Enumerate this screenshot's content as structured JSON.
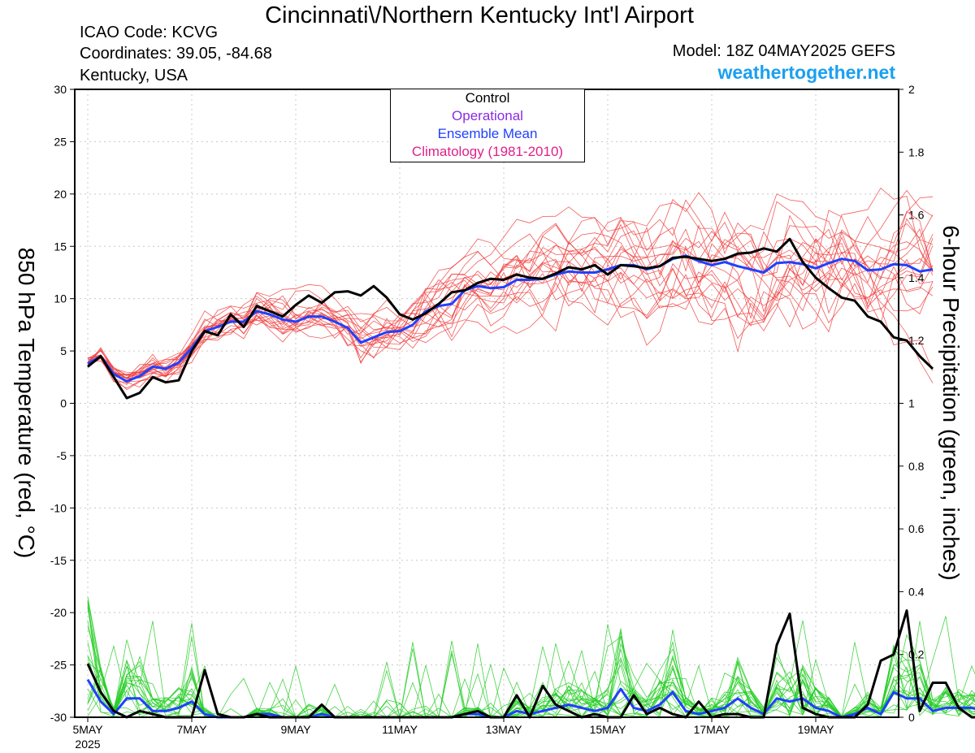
{
  "header": {
    "title": "Cincinnati\\/Northern Kentucky Int'l Airport",
    "icao": "ICAO Code: KCVG",
    "coords": "Coordinates: 39.05, -84.68",
    "region": "Kentucky, USA",
    "model": "Model: 18Z 04MAY2025 GEFS",
    "site": "weathertogether.net"
  },
  "chart_data": {
    "type": "line",
    "x_labels": [
      "5MAY",
      "7MAY",
      "9MAY",
      "11MAY",
      "13MAY",
      "15MAY",
      "17MAY",
      "19MAY"
    ],
    "x_year_label": "2025",
    "x_range_hours": [
      0,
      372
    ],
    "y_left": {
      "label": "850 hPa Temperature (red, °C)",
      "range": [
        -30,
        30
      ],
      "ticks": [
        30,
        25,
        20,
        15,
        10,
        5,
        0,
        -5,
        -10,
        -15,
        -20,
        -25,
        -30
      ]
    },
    "y_right": {
      "label": "6-hour Precipitation (green, inches)",
      "range": [
        0,
        2
      ],
      "ticks": [
        "2",
        "1.8",
        "1.6",
        "1.4",
        "1.2",
        "1",
        "0.8",
        "0.6",
        "0.4",
        "0.2",
        "0"
      ]
    },
    "legend": [
      {
        "name": "Control",
        "color": "#000000"
      },
      {
        "name": "Operational",
        "color": "#8a2be2"
      },
      {
        "name": "Ensemble Mean",
        "color": "#2040ff"
      },
      {
        "name": "Climatology (1981-2010)",
        "color": "#e0208a"
      }
    ],
    "colors": {
      "members_temp": "#f04040",
      "members_precip": "#22cc22",
      "control": "#000000",
      "mean": "#2040ff"
    },
    "control_temp": [
      3.5,
      4.5,
      2.5,
      0.5,
      1.0,
      2.5,
      2.0,
      2.2,
      5.0,
      6.9,
      6.5,
      8.5,
      7.3,
      9.3,
      8.8,
      8.3,
      9.4,
      10.3,
      9.6,
      10.6,
      10.7,
      10.3,
      11.2,
      10.1,
      8.5,
      8.0,
      8.6,
      9.5,
      10.6,
      10.8,
      11.5,
      11.9,
      11.8,
      12.3,
      12.0,
      11.9,
      12.4,
      13.0,
      12.8,
      13.2,
      12.3,
      13.2,
      13.1,
      12.9,
      13.1,
      13.9,
      14.0,
      13.8,
      13.6,
      13.8,
      14.3,
      14.4,
      14.8,
      14.5,
      15.7,
      13.5,
      12.0,
      11.0,
      10.1,
      9.8,
      8.3,
      7.8,
      6.3,
      6.0,
      4.5,
      3.3
    ],
    "mean_temp": [
      3.8,
      4.5,
      2.8,
      2.1,
      2.6,
      3.5,
      3.3,
      3.9,
      5.3,
      6.9,
      7.3,
      7.8,
      7.8,
      8.8,
      8.5,
      8.0,
      7.8,
      8.3,
      8.3,
      7.8,
      7.2,
      5.8,
      6.3,
      6.8,
      6.9,
      7.5,
      8.8,
      9.3,
      9.5,
      10.8,
      11.2,
      11.0,
      11.1,
      11.8,
      11.8,
      11.9,
      12.3,
      12.6,
      12.5,
      12.5,
      12.8,
      13.2,
      13.2,
      12.8,
      13.1,
      13.8,
      14.1,
      13.6,
      13.2,
      13.5,
      13.1,
      12.8,
      12.5,
      13.4,
      13.5,
      13.3,
      12.9,
      13.4,
      13.8,
      13.6,
      12.7,
      12.8,
      13.3,
      13.2,
      12.6,
      12.8
    ],
    "control_precip": [
      0.17,
      0.08,
      0.02,
      0.0,
      0.02,
      0.01,
      0.0,
      0.0,
      0.0,
      0.15,
      0.01,
      0.0,
      0.0,
      0.01,
      0.0,
      0.0,
      0.0,
      0.0,
      0.04,
      0.0,
      0.0,
      0.0,
      0.0,
      0.0,
      0.0,
      0.0,
      0.0,
      0.0,
      0.0,
      0.01,
      0.02,
      0.0,
      0.0,
      0.07,
      0.0,
      0.1,
      0.04,
      0.02,
      0.0,
      0.01,
      0.0,
      0.0,
      0.07,
      0.01,
      0.03,
      0.01,
      0.0,
      0.05,
      0.0,
      0.01,
      0.01,
      0.0,
      0.0,
      0.23,
      0.33,
      0.03,
      0.01,
      0.0,
      0.0,
      0.0,
      0.04,
      0.18,
      0.2,
      0.34,
      0.02,
      0.11,
      0.11,
      0.03,
      0.0,
      0.0,
      0.0,
      0.0
    ],
    "mean_precip": [
      0.12,
      0.05,
      0.01,
      0.06,
      0.06,
      0.02,
      0.02,
      0.03,
      0.05,
      0.01,
      0.0,
      0.0,
      0.0,
      0.01,
      0.01,
      0.0,
      0.0,
      0.0,
      0.01,
      0.0,
      0.0,
      0.0,
      0.0,
      0.0,
      0.0,
      0.0,
      0.0,
      0.0,
      0.0,
      0.01,
      0.01,
      0.0,
      0.0,
      0.02,
      0.01,
      0.02,
      0.03,
      0.04,
      0.03,
      0.02,
      0.03,
      0.09,
      0.03,
      0.02,
      0.04,
      0.08,
      0.02,
      0.01,
      0.02,
      0.03,
      0.06,
      0.03,
      0.01,
      0.06,
      0.05,
      0.06,
      0.03,
      0.02,
      0.0,
      0.01,
      0.03,
      0.01,
      0.08,
      0.06,
      0.06,
      0.02,
      0.03,
      0.03,
      0.03,
      0.02,
      0.05,
      0.06
    ]
  }
}
